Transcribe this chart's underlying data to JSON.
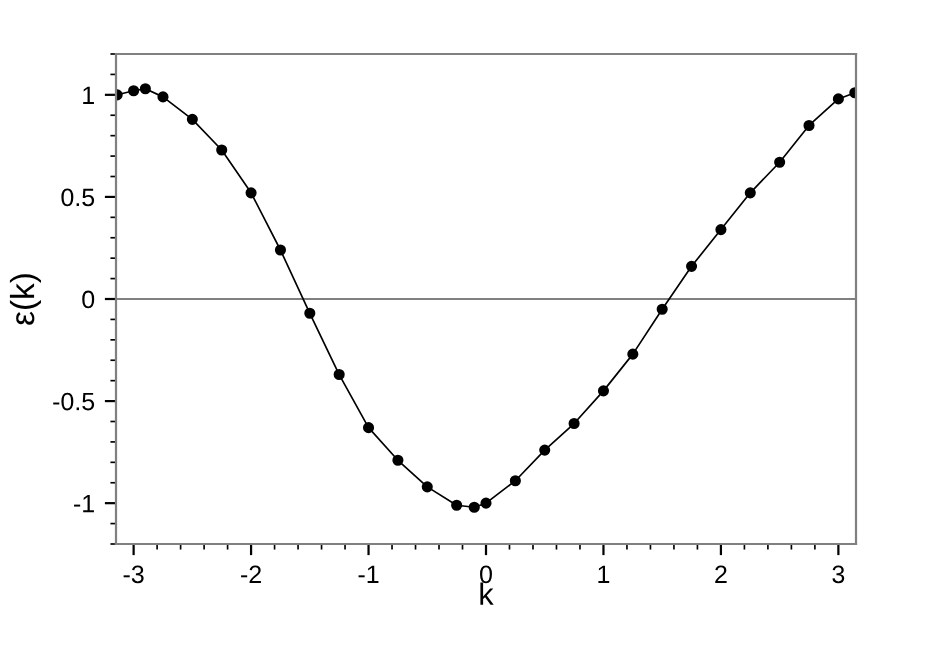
{
  "chart_data": {
    "type": "line",
    "xlabel": "k",
    "ylabel": "ε(k)",
    "marker": "circle",
    "line_style": "solid",
    "grid": false,
    "legend": false,
    "x": [
      -3.14,
      -3.0,
      -2.9,
      -2.75,
      -2.5,
      -2.25,
      -2.0,
      -1.75,
      -1.5,
      -1.25,
      -1.0,
      -0.75,
      -0.5,
      -0.25,
      -0.1,
      0.0,
      0.25,
      0.5,
      0.75,
      1.0,
      1.25,
      1.5,
      1.75,
      2.0,
      2.25,
      2.5,
      2.75,
      3.0,
      3.14
    ],
    "series": [
      {
        "color": "#000000",
        "values": [
          1.0,
          1.02,
          1.03,
          0.99,
          0.88,
          0.73,
          0.52,
          0.24,
          -0.07,
          -0.37,
          -0.63,
          -0.79,
          -0.92,
          -1.01,
          -1.02,
          -1.0,
          -0.89,
          -0.74,
          -0.61,
          -0.45,
          -0.27,
          -0.05,
          0.16,
          0.34,
          0.52,
          0.67,
          0.85,
          0.98,
          1.01
        ]
      }
    ],
    "xlim": [
      -3.15,
      3.15
    ],
    "xticks": [
      -3,
      -2,
      -1,
      0,
      1,
      2,
      3
    ],
    "ylim": [
      -1.2,
      1.2
    ],
    "yticks": [
      -1,
      -0.5,
      0,
      0.5,
      1
    ],
    "ref_lines": [
      {
        "axis": "y",
        "value": 0,
        "color": "#808080"
      }
    ]
  }
}
